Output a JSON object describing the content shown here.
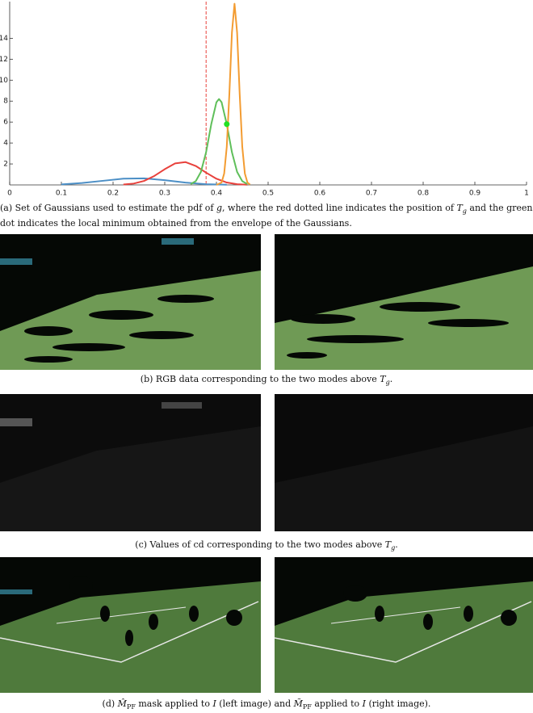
{
  "chart_data": {
    "type": "line",
    "xlim": [
      0,
      1
    ],
    "xticks": [
      0,
      0.1,
      0.2,
      0.3,
      0.4,
      0.5,
      0.6,
      0.7,
      0.8,
      0.9,
      1
    ],
    "ylim": [
      0,
      17.5
    ],
    "yticks": [
      2,
      4,
      6,
      8,
      10,
      12,
      14
    ],
    "grid": false,
    "series": [
      {
        "color": "#4c8fc6",
        "x": [
          0.1,
          0.14,
          0.18,
          0.22,
          0.26,
          0.3,
          0.34,
          0.38,
          0.42
        ],
        "values": [
          0.05,
          0.18,
          0.39,
          0.6,
          0.63,
          0.45,
          0.22,
          0.07,
          0.02
        ]
      },
      {
        "color": "#e8413c",
        "x": [
          0.22,
          0.24,
          0.26,
          0.28,
          0.3,
          0.32,
          0.34,
          0.36,
          0.38,
          0.4,
          0.42,
          0.44,
          0.46
        ],
        "values": [
          0.04,
          0.13,
          0.38,
          0.86,
          1.5,
          2.05,
          2.18,
          1.81,
          1.17,
          0.59,
          0.23,
          0.07,
          0.02
        ]
      },
      {
        "color": "#5fbf5a",
        "x": [
          0.35,
          0.36,
          0.37,
          0.38,
          0.39,
          0.4,
          0.405,
          0.41,
          0.42,
          0.43,
          0.44,
          0.45,
          0.46
        ],
        "values": [
          0.08,
          0.36,
          1.24,
          3.12,
          5.8,
          7.89,
          8.2,
          7.89,
          5.8,
          3.12,
          1.24,
          0.36,
          0.08
        ]
      },
      {
        "color": "#f39c32",
        "x": [
          0.4,
          0.41,
          0.415,
          0.42,
          0.425,
          0.43,
          0.435,
          0.44,
          0.445,
          0.45,
          0.455,
          0.46,
          0.465
        ],
        "values": [
          0,
          0.23,
          1.09,
          3.64,
          8.67,
          14.55,
          17.3,
          14.55,
          8.67,
          3.64,
          1.09,
          0.23,
          0.03
        ]
      }
    ],
    "threshold": {
      "x": 0.38,
      "color": "#e8413c"
    },
    "marker": {
      "x": 0.42,
      "y": 5.8,
      "color": "#22e022"
    }
  },
  "captions": {
    "a": [
      "(a) Set of Gaussians used to estimate the pdf of ",
      "g",
      ", where the red dotted line indicates the position of ",
      "T",
      "g",
      " and the green dot indicates the local minimum obtained from the envelope of the Gaussians."
    ],
    "b": [
      "(b) RGB data corresponding to the two modes above ",
      "T",
      "g",
      "."
    ],
    "c": [
      "(c) Values of cd corresponding to the two modes above ",
      "T",
      "g",
      "."
    ],
    "d": [
      "(d) ",
      "M̂",
      "PF",
      " mask applied to ",
      "I",
      " (left image) and ",
      "M̃",
      "PF",
      " applied to ",
      "I",
      " (right image)."
    ]
  }
}
